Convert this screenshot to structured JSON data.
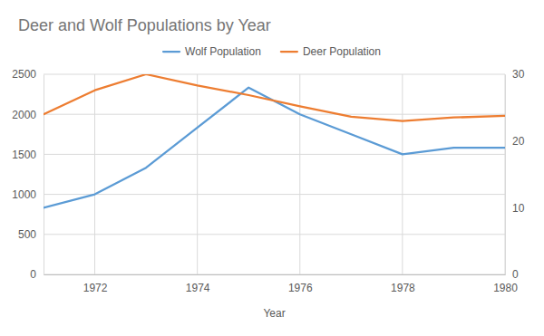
{
  "chart_data": {
    "type": "line",
    "title": "Deer and Wolf Populations by Year",
    "x_label": "Year",
    "x": [
      1971,
      1972,
      1973,
      1974,
      1975,
      1976,
      1977,
      1978,
      1979,
      1980
    ],
    "xlim": [
      1971,
      1980
    ],
    "xticks": [
      1972,
      1974,
      1976,
      1978,
      1980
    ],
    "ylim": [
      0,
      2500
    ],
    "yticks": [
      0,
      500,
      1000,
      1500,
      2000,
      2500
    ],
    "y2lim": [
      0,
      30
    ],
    "y2ticks": [
      0,
      10,
      20,
      30
    ],
    "grid": true,
    "legend": "top",
    "series": [
      {
        "name": "Wolf Population",
        "color": "#5b9bd5",
        "axis": "y2",
        "values": [
          10,
          12,
          16,
          22,
          28,
          24,
          21,
          18,
          19,
          19
        ]
      },
      {
        "name": "Deer Population",
        "color": "#ed7d31",
        "values": [
          2000,
          2300,
          2500,
          2360,
          2240,
          2100,
          1970,
          1915,
          1960,
          1980
        ]
      }
    ]
  }
}
